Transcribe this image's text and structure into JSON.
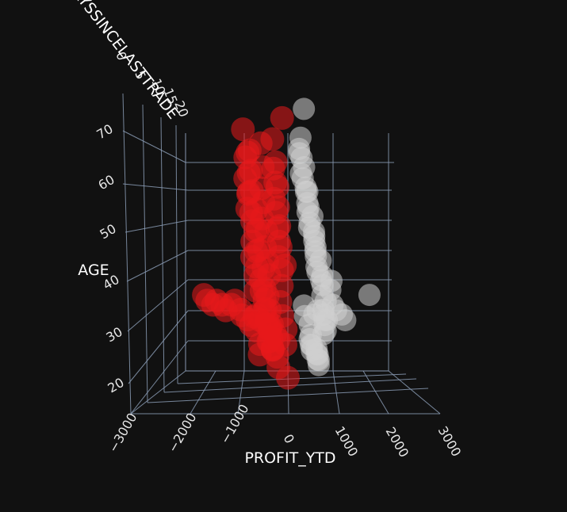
{
  "chart_data": {
    "type": "scatter",
    "title": "",
    "xlabel": "PROFIT_YTD",
    "ylabel": "AGE",
    "zlabel": "DAYSSINCELASTTRADE",
    "x_ticks": [
      "−3000",
      "−2000",
      "−1000",
      "0",
      "1000",
      "2000",
      "3000"
    ],
    "y_ticks": [
      "20",
      "30",
      "40",
      "50",
      "60",
      "70"
    ],
    "z_ticks": [
      "0",
      "5",
      "10",
      "15",
      "20"
    ],
    "xlim": [
      -3000,
      3000
    ],
    "ylim": [
      10,
      75
    ],
    "zlim": [
      0,
      20
    ],
    "grid": true,
    "legend": "none",
    "series": [
      {
        "color": "#e8191c",
        "x": [
          -900,
          -850,
          -800,
          -780,
          -750,
          -720,
          -700,
          -680,
          -650,
          -620,
          -600,
          -580,
          -560,
          -540,
          -520,
          -500,
          -480,
          -460,
          -440,
          -420,
          -400,
          -380,
          -360,
          -340,
          -320,
          -300,
          -280,
          -260,
          -240,
          -220,
          -200,
          -180,
          -160,
          -140,
          -120,
          -100,
          -80,
          -60,
          -40,
          -20,
          0,
          -900,
          -850,
          -800,
          -760,
          -720,
          -680,
          -640,
          -600,
          -560,
          -520,
          -480,
          -440,
          -400,
          -360,
          -320,
          -280,
          -240,
          -200,
          -160,
          -120,
          -80,
          -40,
          -700,
          -650,
          -600,
          -550,
          -500,
          -450,
          -400,
          -350,
          -300,
          -250,
          -200,
          -150,
          -100,
          -50,
          -1800,
          -1700,
          -1600,
          -1500,
          -1400,
          -1300,
          -1200,
          -1100,
          -1000,
          -950,
          -850,
          -750,
          -650,
          -550,
          -450,
          -350,
          -250,
          -150,
          0,
          -100
        ],
        "y": [
          62,
          58,
          55,
          52,
          49,
          45,
          42,
          38,
          35,
          30,
          27,
          24,
          22,
          65,
          60,
          56,
          53,
          50,
          47,
          44,
          41,
          38,
          34,
          31,
          28,
          25,
          23,
          66,
          61,
          57,
          54,
          51,
          48,
          45,
          42,
          39,
          36,
          33,
          30,
          27,
          24,
          68,
          63,
          59,
          55,
          51,
          47,
          43,
          40,
          37,
          35,
          33,
          31,
          29,
          27,
          25,
          23,
          60,
          56,
          52,
          48,
          44,
          40,
          64,
          60,
          56,
          52,
          48,
          44,
          40,
          36,
          32,
          28,
          26,
          24,
          22,
          20,
          34,
          33,
          32,
          33,
          32,
          31,
          32,
          33,
          31,
          30,
          29,
          28,
          30,
          29,
          28,
          27,
          26,
          25,
          17,
          70
        ],
        "z": [
          1,
          3,
          2,
          4,
          1,
          2,
          3,
          1,
          2,
          4,
          3,
          1,
          2,
          2,
          1,
          3,
          2,
          4,
          1,
          3,
          2,
          1,
          3,
          2,
          1,
          4,
          2,
          3,
          1,
          2,
          4,
          3,
          1,
          2,
          3,
          1,
          2,
          4,
          3,
          1,
          2,
          3,
          1,
          2,
          4,
          3,
          1,
          2,
          3,
          1,
          2,
          1,
          3,
          2,
          1,
          4,
          2,
          3,
          1,
          2,
          4,
          3,
          1,
          5,
          6,
          7,
          5,
          6,
          7,
          5,
          6,
          7,
          5,
          6,
          7,
          5,
          6,
          1,
          2,
          1,
          2,
          1,
          2,
          1,
          2,
          1,
          2,
          1,
          2,
          1,
          2,
          1,
          2,
          1,
          2,
          0,
          1
        ]
      },
      {
        "color": "#d0d0d0",
        "x": [
          300,
          350,
          400,
          450,
          500,
          550,
          600,
          650,
          700,
          750,
          800,
          320,
          380,
          440,
          500,
          560,
          620,
          680,
          740,
          800,
          300,
          360,
          420,
          480,
          540,
          600,
          660,
          720,
          780,
          400,
          450,
          500,
          550,
          600,
          650,
          700,
          750,
          800,
          850,
          900,
          600,
          700,
          800,
          900,
          1000,
          1100,
          1200,
          1300,
          500,
          550,
          600,
          650,
          700,
          750,
          800,
          850,
          900,
          950,
          1000,
          1800,
          400
        ],
        "y": [
          66,
          62,
          58,
          55,
          52,
          49,
          46,
          43,
          40,
          37,
          34,
          64,
          60,
          56,
          53,
          50,
          47,
          44,
          41,
          38,
          63,
          59,
          55,
          51,
          48,
          45,
          42,
          39,
          36,
          32,
          30,
          28,
          26,
          24,
          23,
          22,
          21,
          31,
          29,
          27,
          30,
          31,
          30,
          29,
          32,
          31,
          30,
          29,
          25,
          24,
          23,
          22,
          21,
          20,
          26,
          28,
          33,
          35,
          37,
          34,
          72
        ],
        "z": [
          1,
          2,
          3,
          1,
          2,
          3,
          1,
          2,
          3,
          1,
          2,
          3,
          1,
          2,
          3,
          1,
          2,
          3,
          1,
          2,
          2,
          3,
          1,
          2,
          3,
          1,
          2,
          3,
          1,
          2,
          3,
          1,
          2,
          3,
          1,
          2,
          3,
          1,
          2,
          3,
          1,
          2,
          1,
          2,
          1,
          2,
          1,
          2,
          1,
          2,
          3,
          1,
          2,
          3,
          1,
          2,
          3,
          1,
          2,
          1,
          2
        ]
      }
    ]
  }
}
